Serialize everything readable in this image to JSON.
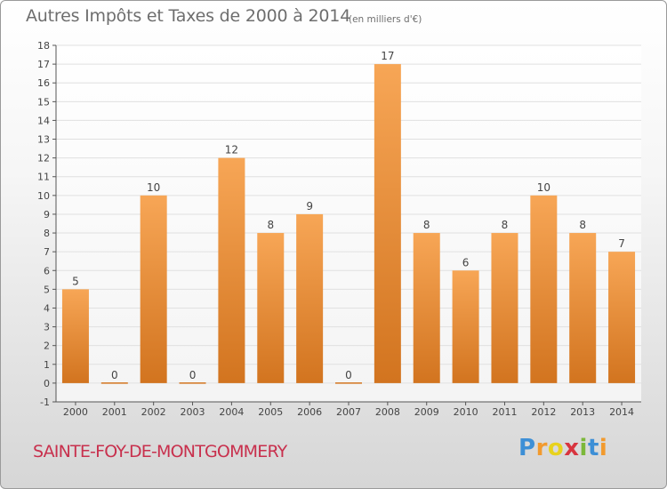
{
  "title": "Autres Impôts et Taxes de 2000 à 2014",
  "subtitle": "(en milliers d'€)",
  "commune": "SAINTE-FOY-DE-MONTGOMMERY",
  "logo": {
    "letters": [
      "P",
      "r",
      "o",
      "x",
      "i",
      "t",
      "i"
    ],
    "colors": [
      "#3d8fd6",
      "#f29a2e",
      "#e8d21d",
      "#d8353f",
      "#7cb83a",
      "#3d8fd6",
      "#f29a2e"
    ]
  },
  "colors": {
    "bar_top": "#f7a656",
    "bar_bottom": "#d2741f",
    "axis": "#555555",
    "grid": "#e0e0e0",
    "text": "#444444",
    "title": "#6e6e6e",
    "commune": "#c8304d"
  },
  "chart_data": {
    "type": "bar",
    "title": "Autres Impôts et Taxes de 2000 à 2014",
    "subtitle": "(en milliers d'€)",
    "categories": [
      "2000",
      "2001",
      "2002",
      "2003",
      "2004",
      "2005",
      "2006",
      "2007",
      "2008",
      "2009",
      "2010",
      "2011",
      "2012",
      "2013",
      "2014"
    ],
    "values": [
      5,
      0,
      10,
      0,
      12,
      8,
      9,
      0,
      17,
      8,
      6,
      8,
      10,
      8,
      7
    ],
    "data_labels": [
      "5",
      "0",
      "10",
      "0",
      "12",
      "8",
      "9",
      "0",
      "17",
      "8",
      "6",
      "8",
      "10",
      "8",
      "7"
    ],
    "yticks": [
      "-1",
      "0",
      "1",
      "2",
      "3",
      "4",
      "5",
      "6",
      "7",
      "8",
      "9",
      "10",
      "11",
      "12",
      "13",
      "14",
      "15",
      "16",
      "17",
      "18"
    ],
    "ylim": [
      -1,
      18
    ],
    "xlabel": "",
    "ylabel": "",
    "grid": true,
    "legend": "none"
  }
}
